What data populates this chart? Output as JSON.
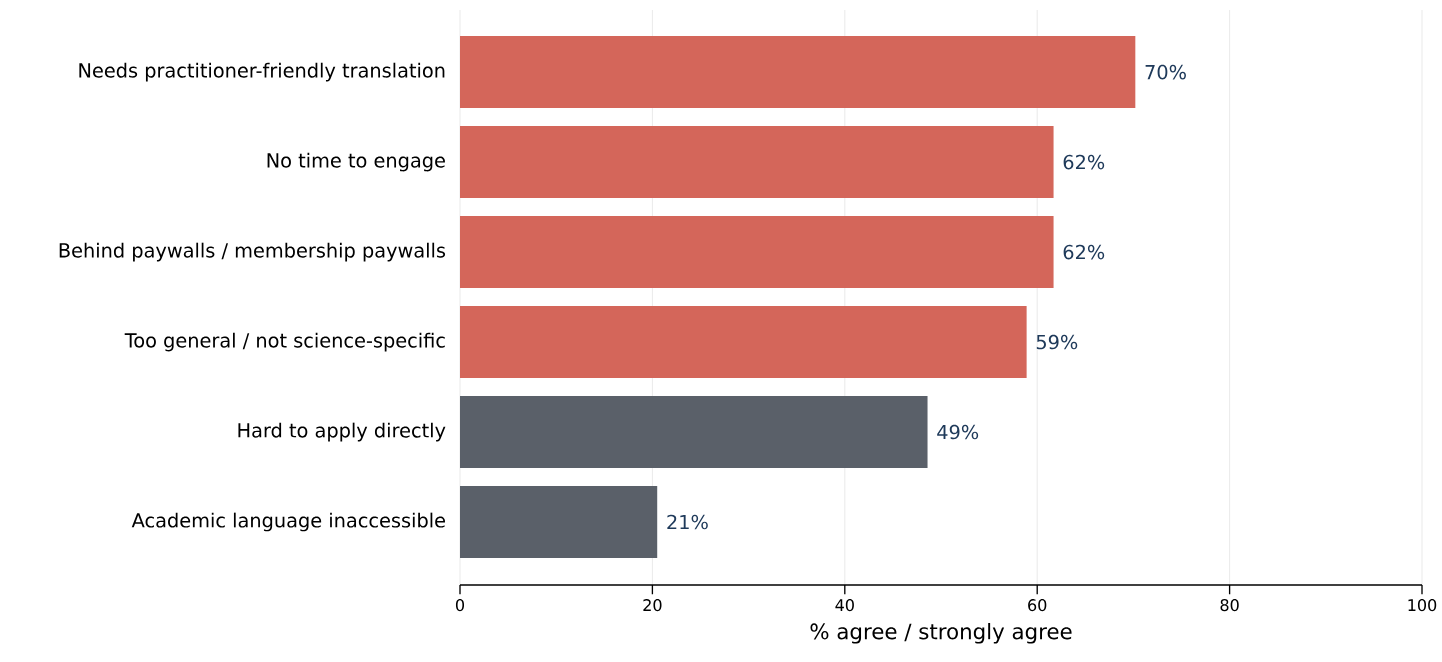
{
  "chart_data": {
    "type": "bar",
    "orientation": "horizontal",
    "categories": [
      "Needs practitioner-friendly translation",
      "No time to engage",
      "Behind paywalls / membership paywalls",
      "Too general / not science-specific",
      "Hard to apply directly",
      "Academic language inaccessible"
    ],
    "values": [
      70.2,
      61.7,
      61.7,
      58.9,
      48.6,
      20.5
    ],
    "colors": [
      "#d4665a",
      "#d4665a",
      "#d4665a",
      "#d4665a",
      "#5a6069",
      "#5a6069"
    ],
    "value_labels": [
      "70%",
      "62%",
      "62%",
      "59%",
      "49%",
      "21%"
    ],
    "xlabel": "% agree / strongly agree",
    "xlim": [
      0,
      100
    ],
    "xticks": [
      0,
      20,
      40,
      60,
      80,
      100
    ],
    "grid": "x"
  }
}
